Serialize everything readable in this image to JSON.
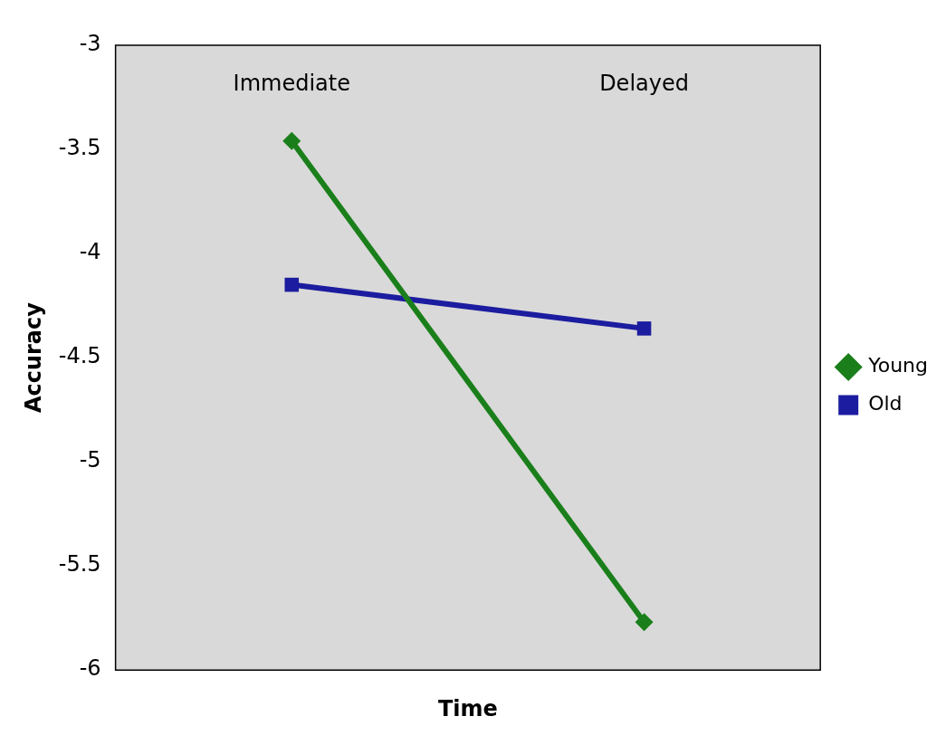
{
  "chart_data": {
    "type": "line",
    "xlabel": "Time",
    "ylabel": "Accuracy",
    "categories": [
      "Immediate",
      "Delayed"
    ],
    "series": [
      {
        "name": "Young",
        "color": "#1a7f1a",
        "marker": "diamond",
        "values": [
          -3.46,
          -5.77
        ]
      },
      {
        "name": "Old",
        "color": "#1c1ca0",
        "marker": "square",
        "values": [
          -4.15,
          -4.36
        ]
      }
    ],
    "ylim": [
      -6,
      -3
    ],
    "yticks": [
      -6,
      -5.5,
      -5,
      -4.5,
      -4,
      -3.5,
      -3
    ],
    "grid": false,
    "legend": "right"
  }
}
